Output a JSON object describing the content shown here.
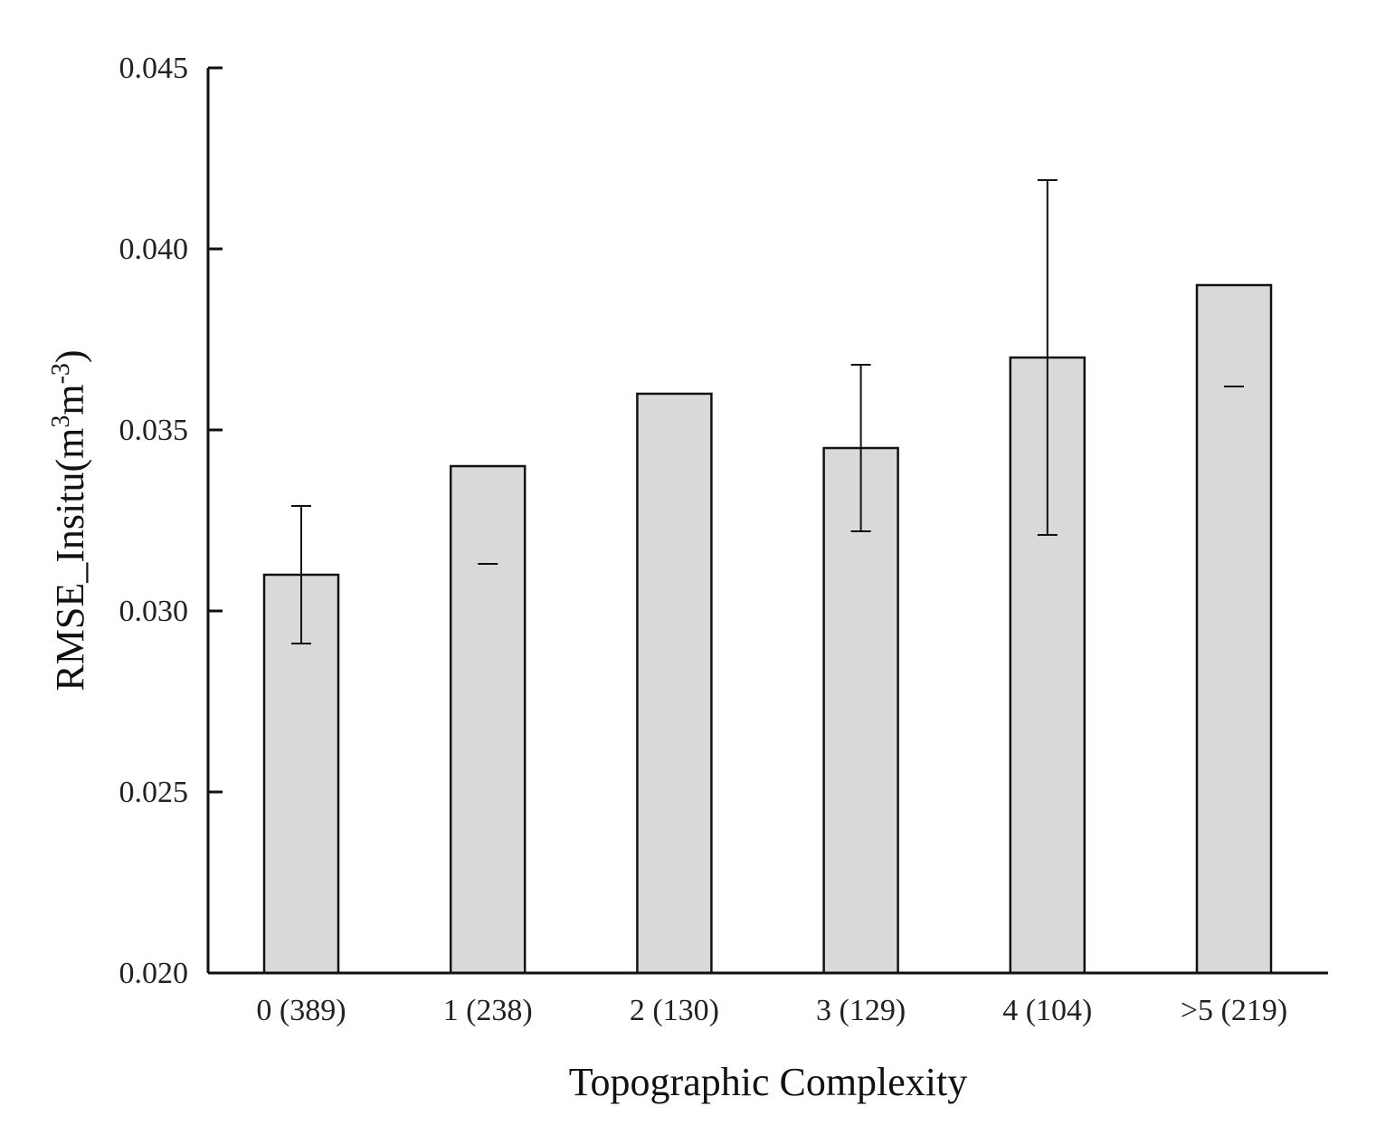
{
  "chart_data": {
    "type": "bar",
    "categories": [
      "0 (389)",
      "1 (238)",
      "2 (130)",
      "3 (129)",
      "4 (104)",
      ">5 (219)"
    ],
    "values": [
      0.031,
      0.034,
      0.036,
      0.0345,
      0.037,
      0.039
    ],
    "error_high": [
      0.0329,
      null,
      null,
      0.0368,
      0.0419,
      null
    ],
    "error_low": [
      0.0291,
      0.0313,
      null,
      0.0322,
      0.0321,
      0.0362
    ],
    "xlabel": "Topographic Complexity",
    "ylabel": {
      "prefix": "RMSE_Insitu(m",
      "sup1": "3",
      "middle": "m",
      "sup2": "-3",
      "suffix": ")"
    },
    "ylim": [
      0.02,
      0.045
    ],
    "yticks": [
      "0.020",
      "0.025",
      "0.030",
      "0.035",
      "0.040",
      "0.045"
    ],
    "grid": false,
    "legend": "none",
    "colors": {
      "bar_fill": "#d9d9d9",
      "bar_stroke": "#111111",
      "axis": "#111111"
    }
  }
}
